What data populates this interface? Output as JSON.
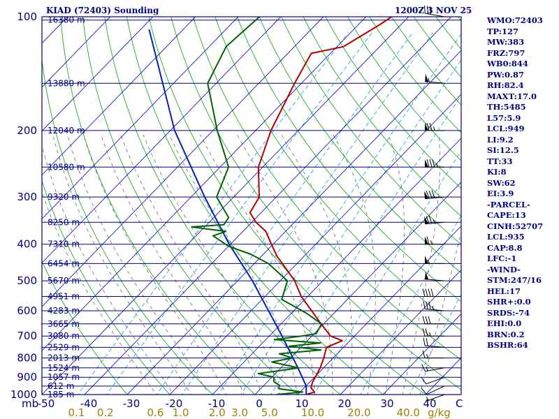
{
  "titles": {
    "left": "KIAD (72403) Sounding",
    "right": "1200Z  3 NOV 25"
  },
  "indices": [
    "WMO:72403",
    "TP:127",
    "MW:383",
    "FRZ:797",
    "WB0:844",
    "PW:0.87",
    "RH:82.4",
    "MAXT:17.0",
    "TH:5485",
    "L57:5.9",
    "LCL:949",
    "LI:9.2",
    "SI:12.5",
    "TT:33",
    "KI:8",
    "SW:62",
    "EI:3.9",
    "-PARCEL-",
    "CAPE:13",
    "CINH:52707",
    "LCL:935",
    "CAP:8.8",
    "LFC:-1",
    "-WIND-",
    "STM:247/16",
    "HEL:17",
    "SHR+:0.0",
    "SRDS:-74",
    "EHI:0.0",
    "BRN:0.2",
    "BSHR:64"
  ],
  "colors": {
    "isobar": "#000080",
    "frame": "#000080",
    "isotherm": "#1c1cb4",
    "dry_adiabat": "#22aa22",
    "moist_adiabat": "#6a6a6a",
    "mixing_ratio": "#2aa0e0",
    "temperature": "#b40000",
    "dewpoint": "#006400",
    "parcel": "#0020c0",
    "wind_barb": "#000000",
    "mixing_label": "#9a8400"
  },
  "chart_data": {
    "type": "skew-t log-p sounding",
    "x_axis": {
      "unit": "C",
      "ticks": [
        -50,
        -40,
        -30,
        -20,
        -10,
        0,
        10,
        20,
        30,
        40
      ],
      "unit_label": "C",
      "range_at_1000mb": [
        -50,
        47
      ]
    },
    "y_axis": {
      "unit": "mb",
      "unit_label": "mb",
      "scale": "log",
      "range": [
        1000,
        100
      ],
      "ticks": [
        100,
        200,
        300,
        400,
        500,
        600,
        700,
        800,
        900,
        1000
      ]
    },
    "height_levels": [
      {
        "p": 102,
        "label": "16380 m"
      },
      {
        "p": 150,
        "label": "13880 m"
      },
      {
        "p": 200,
        "label": "12040 m"
      },
      {
        "p": 250,
        "label": "10580 m"
      },
      {
        "p": 300,
        "label": "9320 m"
      },
      {
        "p": 350,
        "label": "8250 m"
      },
      {
        "p": 400,
        "label": "7310 m"
      },
      {
        "p": 450,
        "label": "6454 m"
      },
      {
        "p": 500,
        "label": "5670 m"
      },
      {
        "p": 550,
        "label": "4951 m"
      },
      {
        "p": 600,
        "label": "4283 m"
      },
      {
        "p": 650,
        "label": "3665 m"
      },
      {
        "p": 700,
        "label": "3080 m"
      },
      {
        "p": 750,
        "label": "2529 m"
      },
      {
        "p": 800,
        "label": "2013 m"
      },
      {
        "p": 850,
        "label": "1524 m"
      },
      {
        "p": 900,
        "label": "1057 m"
      },
      {
        "p": 950,
        "label": "612 m"
      },
      {
        "p": 1000,
        "label": "185 m"
      }
    ],
    "mixing_ratio_labels": [
      {
        "w": 0.1,
        "label": "0.1"
      },
      {
        "w": 0.2,
        "label": "0.2"
      },
      {
        "w": 0.6,
        "label": "0.6"
      },
      {
        "w": 1.0,
        "label": "1.0"
      },
      {
        "w": 2.0,
        "label": "2.0"
      },
      {
        "w": 3.0,
        "label": "3.0"
      },
      {
        "w": 5.0,
        "label": "5.0"
      },
      {
        "w": 10.0,
        "label": "10.0"
      },
      {
        "w": 20.0,
        "label": "20.0"
      },
      {
        "w": 40.0,
        "label": "40.0"
      }
    ],
    "mixing_ratio_unit": "g/kg",
    "temperature": [
      [
        1000,
        12.0
      ],
      [
        985,
        13.4
      ],
      [
        960,
        11.6
      ],
      [
        925,
        10.6
      ],
      [
        900,
        10.2
      ],
      [
        850,
        9.2
      ],
      [
        800,
        7.8
      ],
      [
        750,
        6.0
      ],
      [
        720,
        8.2
      ],
      [
        700,
        4.4
      ],
      [
        650,
        -0.6
      ],
      [
        600,
        -5.8
      ],
      [
        550,
        -11.5
      ],
      [
        500,
        -16.6
      ],
      [
        460,
        -22.0
      ],
      [
        430,
        -26.4
      ],
      [
        400,
        -30.4
      ],
      [
        370,
        -34.6
      ],
      [
        350,
        -39.0
      ],
      [
        330,
        -42.6
      ],
      [
        300,
        -44.0
      ],
      [
        250,
        -51.0
      ],
      [
        200,
        -56.4
      ],
      [
        150,
        -61.6
      ],
      [
        125,
        -64.5
      ],
      [
        120,
        -58.5
      ],
      [
        105,
        -55.0
      ],
      [
        100,
        -54.0
      ]
    ],
    "dewpoint": [
      [
        1000,
        5.0
      ],
      [
        985,
        10.6
      ],
      [
        965,
        4.3
      ],
      [
        945,
        3.6
      ],
      [
        925,
        1.5
      ],
      [
        900,
        0.5
      ],
      [
        880,
        -4.0
      ],
      [
        860,
        1.5
      ],
      [
        850,
        4.2
      ],
      [
        820,
        -3.5
      ],
      [
        800,
        0.4
      ],
      [
        780,
        -3.6
      ],
      [
        762,
        5.3
      ],
      [
        745,
        -3.0
      ],
      [
        730,
        3.6
      ],
      [
        715,
        -8.0
      ],
      [
        700,
        -2.4
      ],
      [
        690,
        0.5
      ],
      [
        650,
        -0.5
      ],
      [
        610,
        -6.3
      ],
      [
        560,
        -15.4
      ],
      [
        520,
        -17.3
      ],
      [
        500,
        -18.3
      ],
      [
        450,
        -26.7
      ],
      [
        425,
        -33.0
      ],
      [
        405,
        -40.0
      ],
      [
        380,
        -46.0
      ],
      [
        370,
        -44.0
      ],
      [
        360,
        -53.0
      ],
      [
        355,
        -46.0
      ],
      [
        340,
        -46.5
      ],
      [
        300,
        -54.0
      ],
      [
        250,
        -58.0
      ],
      [
        200,
        -69.0
      ],
      [
        150,
        -82.0
      ],
      [
        120,
        -86.0
      ],
      [
        100,
        -85.0
      ]
    ],
    "parcel": [
      [
        1000,
        12.0
      ],
      [
        950,
        10.1
      ],
      [
        850,
        4.0
      ],
      [
        700,
        -7.0
      ],
      [
        500,
        -26.5
      ],
      [
        400,
        -40.3
      ],
      [
        300,
        -56.8
      ],
      [
        200,
        -79.0
      ],
      [
        108,
        -108.0
      ]
    ],
    "wind": [
      {
        "p": 1000,
        "dir": 250,
        "spd": 5
      },
      {
        "p": 950,
        "dir": 245,
        "spd": 10
      },
      {
        "p": 900,
        "dir": 250,
        "spd": 10
      },
      {
        "p": 850,
        "dir": 260,
        "spd": 15
      },
      {
        "p": 800,
        "dir": 270,
        "spd": 15
      },
      {
        "p": 750,
        "dir": 275,
        "spd": 20
      },
      {
        "p": 700,
        "dir": 270,
        "spd": 25
      },
      {
        "p": 650,
        "dir": 270,
        "spd": 30
      },
      {
        "p": 600,
        "dir": 275,
        "spd": 35
      },
      {
        "p": 550,
        "dir": 270,
        "spd": 40
      },
      {
        "p": 500,
        "dir": 275,
        "spd": 50
      },
      {
        "p": 450,
        "dir": 270,
        "spd": 55
      },
      {
        "p": 400,
        "dir": 270,
        "spd": 65
      },
      {
        "p": 350,
        "dir": 265,
        "spd": 75
      },
      {
        "p": 300,
        "dir": 265,
        "spd": 80
      },
      {
        "p": 250,
        "dir": 270,
        "spd": 85
      },
      {
        "p": 200,
        "dir": 270,
        "spd": 75
      },
      {
        "p": 150,
        "dir": 275,
        "spd": 55
      },
      {
        "p": 100,
        "dir": 280,
        "spd": 30
      }
    ]
  }
}
